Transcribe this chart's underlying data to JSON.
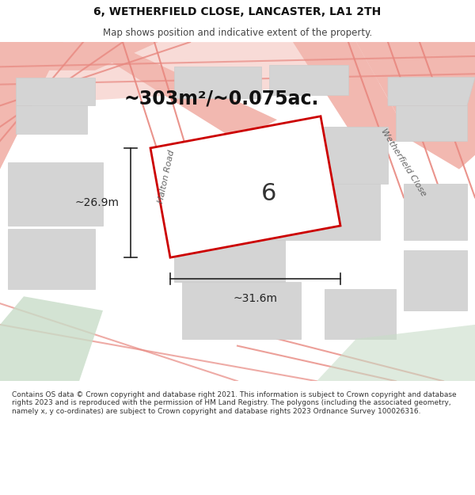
{
  "title_line1": "6, WETHERFIELD CLOSE, LANCASTER, LA1 2TH",
  "title_line2": "Map shows position and indicative extent of the property.",
  "area_text": "~303m²/~0.075ac.",
  "plot_number": "6",
  "dim_width": "~31.6m",
  "dim_height": "~26.9m",
  "road_label_1": "Halton Road",
  "road_label_2": "Wetherfield Close",
  "footer_text": "Contains OS data © Crown copyright and database right 2021. This information is subject to Crown copyright and database rights 2023 and is reproduced with the permission of HM Land Registry. The polygons (including the associated geometry, namely x, y co-ordinates) are subject to Crown copyright and database rights 2023 Ordnance Survey 100026316.",
  "bg_color": "#ffffff",
  "plot_fill": "#ffffff",
  "plot_edge": "#cc0000",
  "road_color": "#f2b8b0",
  "road_stroke": "#e88880",
  "building_fill": "#d4d4d4",
  "building_stroke": "#cccccc",
  "green_fill": "#c8ddc8",
  "dim_color": "#222222",
  "text_color": "#333333",
  "title_color": "#111111"
}
